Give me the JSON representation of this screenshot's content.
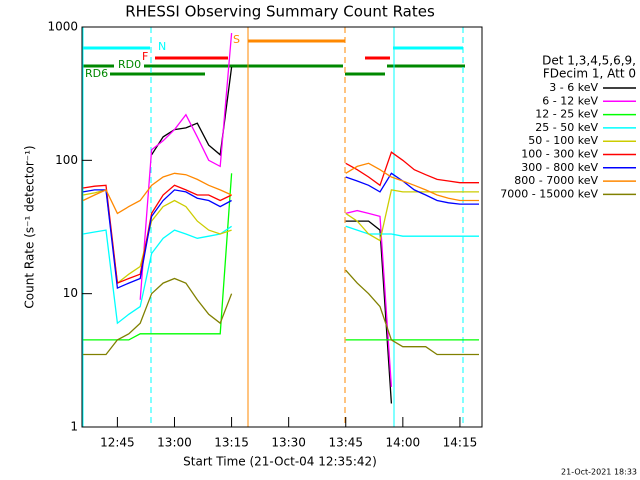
{
  "chart_data": {
    "type": "line",
    "title": "RHESSI Observing Summary Count Rates",
    "x_label": "Start Time (21-Oct-04 12:35:42)",
    "y_label": "Count Rate (s⁻¹ detector⁻¹)",
    "footer": "21-Oct-2021 18:33",
    "legend_header": [
      "Det 1,3,4,5,6,9,",
      "FDecim 1, Att 0"
    ],
    "annotations": [
      "N",
      "F",
      "S",
      "RD0",
      "RD6"
    ],
    "ylog": true,
    "legend_position": "right",
    "xlim": [
      755.7,
      860.8
    ],
    "xticks": [
      {
        "value": 765,
        "label": "12:45"
      },
      {
        "value": 780,
        "label": "13:00"
      },
      {
        "value": 795,
        "label": "13:15"
      },
      {
        "value": 810,
        "label": "13:30"
      },
      {
        "value": 825,
        "label": "13:45"
      },
      {
        "value": 840,
        "label": "14:00"
      },
      {
        "value": 855,
        "label": "14:15"
      }
    ],
    "ylim": [
      1,
      1000
    ],
    "yticks": [
      1,
      10,
      100,
      1000
    ],
    "x": [
      756,
      759,
      762,
      765,
      768,
      771,
      774,
      777,
      780,
      783,
      786,
      789,
      792,
      795,
      810,
      825,
      828,
      831,
      834,
      837,
      840,
      843,
      846,
      849,
      852,
      855,
      858,
      860
    ],
    "series": [
      {
        "name": "3 - 6 keV",
        "color": "#000000",
        "values": [
          null,
          null,
          null,
          null,
          null,
          null,
          110,
          150,
          170,
          175,
          190,
          130,
          110,
          500,
          null,
          35,
          35,
          35,
          30,
          1.5,
          null,
          null,
          null,
          null,
          null,
          null,
          null,
          null
        ]
      },
      {
        "name": "6 - 12 keV",
        "color": "#ff00ff",
        "values": [
          null,
          null,
          null,
          null,
          null,
          9,
          120,
          140,
          170,
          220,
          150,
          100,
          90,
          900,
          null,
          40,
          42,
          40,
          38,
          2,
          null,
          null,
          null,
          null,
          null,
          null,
          null,
          null
        ]
      },
      {
        "name": "12 - 25 keV",
        "color": "#00ff00",
        "values": [
          4.5,
          4.5,
          4.5,
          4.5,
          4.5,
          5,
          5,
          5,
          5,
          5,
          5,
          5,
          5,
          80,
          null,
          4.5,
          4.5,
          4.5,
          4.5,
          4.5,
          4.5,
          4.5,
          4.5,
          4.5,
          4.5,
          4.5,
          4.5,
          4.5
        ]
      },
      {
        "name": "25 - 50 keV",
        "color": "#00ffff",
        "values": [
          28,
          29,
          30,
          6,
          7,
          8,
          20,
          26,
          30,
          28,
          26,
          27,
          28,
          32,
          null,
          32,
          30,
          28,
          28,
          28,
          27,
          27,
          27,
          27,
          27,
          27,
          27,
          27
        ]
      },
      {
        "name": "50 - 100 keV",
        "color": "#cccc00",
        "values": [
          55,
          57,
          60,
          12,
          14,
          16,
          35,
          45,
          50,
          45,
          35,
          30,
          28,
          30,
          null,
          40,
          35,
          28,
          25,
          60,
          58,
          58,
          58,
          58,
          58,
          58,
          58,
          58
        ]
      },
      {
        "name": "100 - 300 keV",
        "color": "#ff0000",
        "values": [
          62,
          64,
          65,
          12,
          13,
          14,
          40,
          55,
          65,
          60,
          55,
          55,
          50,
          55,
          null,
          95,
          85,
          75,
          65,
          115,
          100,
          85,
          78,
          72,
          70,
          68,
          68,
          68
        ]
      },
      {
        "name": "300 - 800 keV",
        "color": "#0000ff",
        "values": [
          58,
          60,
          60,
          11,
          12,
          13,
          38,
          50,
          60,
          58,
          52,
          50,
          45,
          50,
          null,
          75,
          70,
          65,
          58,
          80,
          70,
          60,
          55,
          50,
          48,
          47,
          47,
          47
        ]
      },
      {
        "name": "800 - 7000 keV",
        "color": "#ff8800",
        "values": [
          50,
          55,
          60,
          40,
          45,
          50,
          65,
          75,
          80,
          78,
          72,
          65,
          60,
          55,
          null,
          80,
          90,
          95,
          85,
          75,
          70,
          65,
          60,
          55,
          52,
          50,
          50,
          50
        ]
      },
      {
        "name": "7000 - 15000 keV",
        "color": "#808000",
        "values": [
          3.5,
          3.5,
          3.5,
          4.5,
          5,
          6,
          10,
          12,
          13,
          12,
          9,
          7,
          6,
          10,
          null,
          15,
          12,
          10,
          8,
          4.5,
          4,
          4,
          4,
          3.5,
          3.5,
          3.5,
          3.5,
          3.5
        ]
      }
    ]
  }
}
